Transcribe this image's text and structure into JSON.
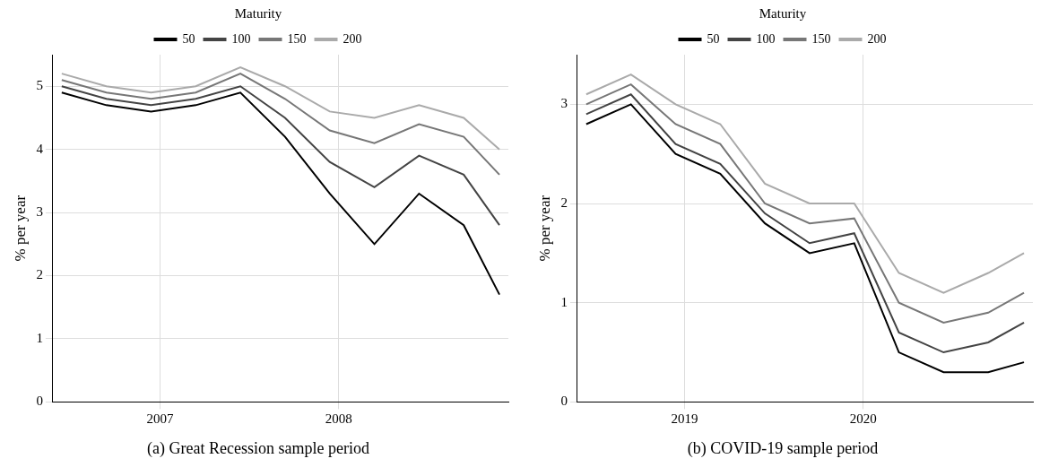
{
  "chart_data": [
    {
      "type": "line",
      "title": "(a) Great Recession sample period",
      "ylabel": "% per year",
      "legend_title": "Maturity",
      "legend": "top",
      "grid": true,
      "xlim": [
        2006.4,
        2008.95
      ],
      "xticks": [
        2007,
        2008
      ],
      "ylim": [
        0,
        5.5
      ],
      "yticks": [
        0,
        1,
        2,
        3,
        4,
        5
      ],
      "x": [
        2006.45,
        2006.7,
        2006.95,
        2007.2,
        2007.45,
        2007.7,
        2007.95,
        2008.2,
        2008.45,
        2008.7,
        2008.9
      ],
      "series": [
        {
          "name": "50",
          "color": "#000000",
          "values": [
            4.9,
            4.7,
            4.6,
            4.7,
            4.9,
            4.2,
            3.3,
            2.5,
            3.3,
            2.8,
            1.7
          ]
        },
        {
          "name": "100",
          "color": "#444444",
          "values": [
            5.0,
            4.8,
            4.7,
            4.8,
            5.0,
            4.5,
            3.8,
            3.4,
            3.9,
            3.6,
            2.8
          ]
        },
        {
          "name": "150",
          "color": "#777777",
          "values": [
            5.1,
            4.9,
            4.8,
            4.9,
            5.2,
            4.8,
            4.3,
            4.1,
            4.4,
            4.2,
            3.6
          ]
        },
        {
          "name": "200",
          "color": "#aaaaaa",
          "values": [
            5.2,
            5.0,
            4.9,
            5.0,
            5.3,
            5.0,
            4.6,
            4.5,
            4.7,
            4.5,
            4.0
          ]
        }
      ]
    },
    {
      "type": "line",
      "title": "(b) COVID-19 sample period",
      "ylabel": "% per year",
      "legend_title": "Maturity",
      "legend": "top",
      "grid": true,
      "xlim": [
        2018.4,
        2020.95
      ],
      "xticks": [
        2019,
        2020
      ],
      "ylim": [
        0,
        3.5
      ],
      "yticks": [
        0,
        1,
        2,
        3
      ],
      "x": [
        2018.45,
        2018.7,
        2018.95,
        2019.2,
        2019.45,
        2019.7,
        2019.95,
        2020.2,
        2020.45,
        2020.7,
        2020.9
      ],
      "series": [
        {
          "name": "50",
          "color": "#000000",
          "values": [
            2.8,
            3.0,
            2.5,
            2.3,
            1.8,
            1.5,
            1.6,
            0.5,
            0.3,
            0.3,
            0.4
          ]
        },
        {
          "name": "100",
          "color": "#444444",
          "values": [
            2.9,
            3.1,
            2.6,
            2.4,
            1.9,
            1.6,
            1.7,
            0.7,
            0.5,
            0.6,
            0.8
          ]
        },
        {
          "name": "150",
          "color": "#777777",
          "values": [
            3.0,
            3.2,
            2.8,
            2.6,
            2.0,
            1.8,
            1.85,
            1.0,
            0.8,
            0.9,
            1.1
          ]
        },
        {
          "name": "200",
          "color": "#aaaaaa",
          "values": [
            3.1,
            3.3,
            3.0,
            2.8,
            2.2,
            2.0,
            2.0,
            1.3,
            1.1,
            1.3,
            1.5
          ]
        }
      ]
    }
  ]
}
